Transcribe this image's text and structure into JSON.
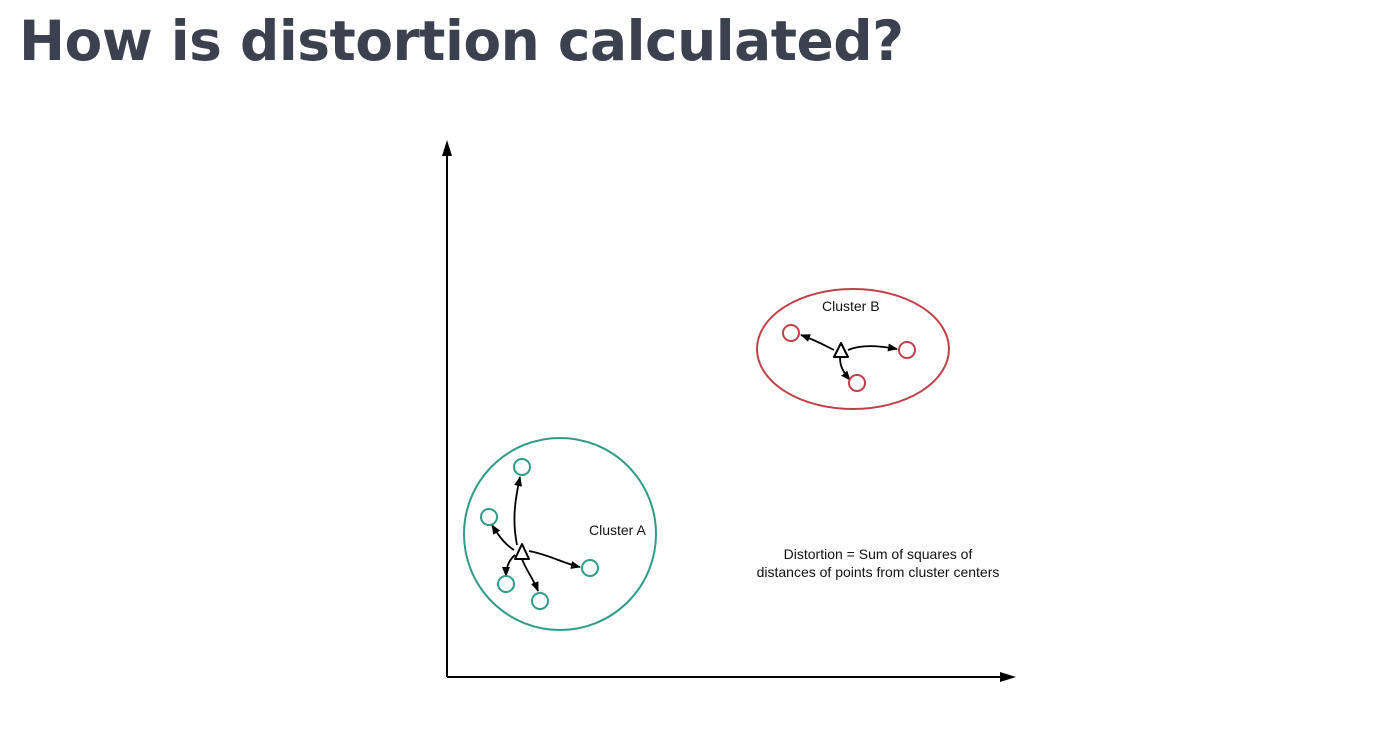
{
  "slide": {
    "title": "How is distortion calculated?"
  },
  "diagram": {
    "cluster_a": {
      "label": "Cluster A",
      "color": "#2e9b87"
    },
    "cluster_b": {
      "label": "Cluster B",
      "color": "#c0404a"
    },
    "annotation": {
      "line1": "Distortion = Sum of squares of",
      "line2": "distances of points from cluster centers"
    },
    "text_color": "#3c4150"
  }
}
